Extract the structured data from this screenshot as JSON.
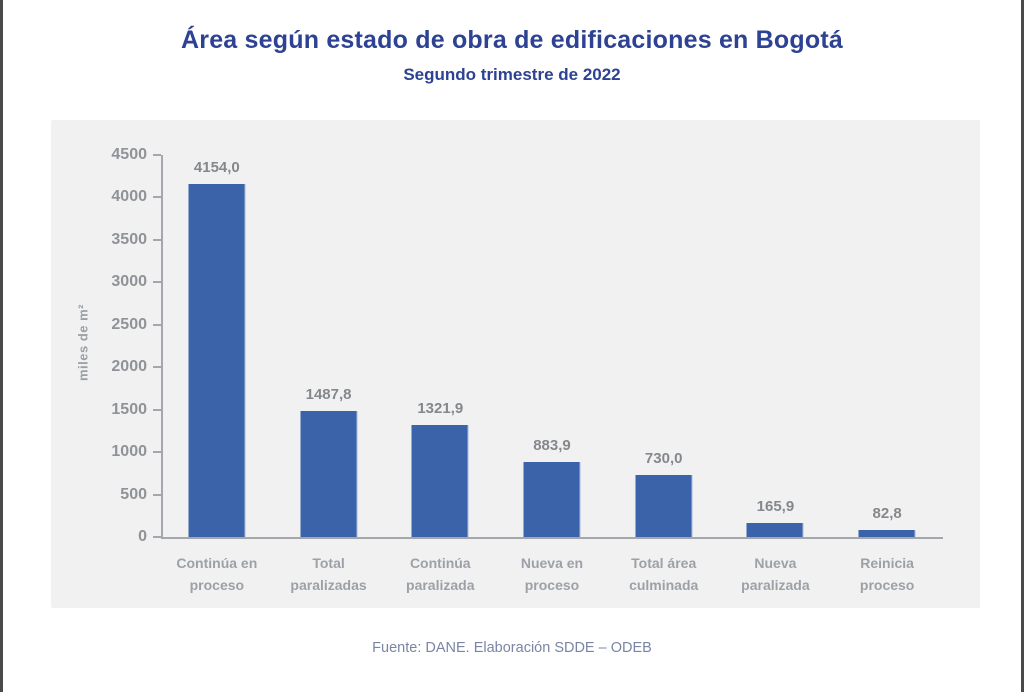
{
  "page": {
    "title": "Área según estado de obra de edificaciones en Bogotá",
    "subtitle": "Segundo trimestre de 2022",
    "source": "Fuente: DANE. Elaboración SDDE – ODEB"
  },
  "colors": {
    "bar": "#3a63a9",
    "title_text": "#2d4293",
    "axis_line": "#a4a8ac",
    "tick_text": "#8f9398",
    "value_text": "#84888d",
    "category_text": "#9ca1a7",
    "panel_bg": "#f1f1f1",
    "source_text": "#7a85a6"
  },
  "chart_data": {
    "type": "bar",
    "title": "Área según estado de obra de edificaciones en Bogotá",
    "subtitle": "Segundo trimestre de 2022",
    "categories": [
      "Continúa en proceso",
      "Total paralizadas",
      "Continúa paralizada",
      "Nueva en proceso",
      "Total área culminada",
      "Nueva paralizada",
      "Reinicia proceso"
    ],
    "values": [
      4154.0,
      1487.8,
      1321.9,
      883.9,
      730.0,
      165.9,
      82.8
    ],
    "value_labels": [
      "4154,0",
      "1487,8",
      "1321,9",
      "883,9",
      "730,0",
      "165,9",
      "82,8"
    ],
    "xlabel": "",
    "ylabel": "miles de m²",
    "ylim": [
      0,
      4500
    ],
    "yticks": [
      0,
      500,
      1000,
      1500,
      2000,
      2500,
      3000,
      3500,
      4000,
      4500
    ],
    "grid": false,
    "legend": "none",
    "source": "Fuente: DANE. Elaboración SDDE – ODEB"
  }
}
